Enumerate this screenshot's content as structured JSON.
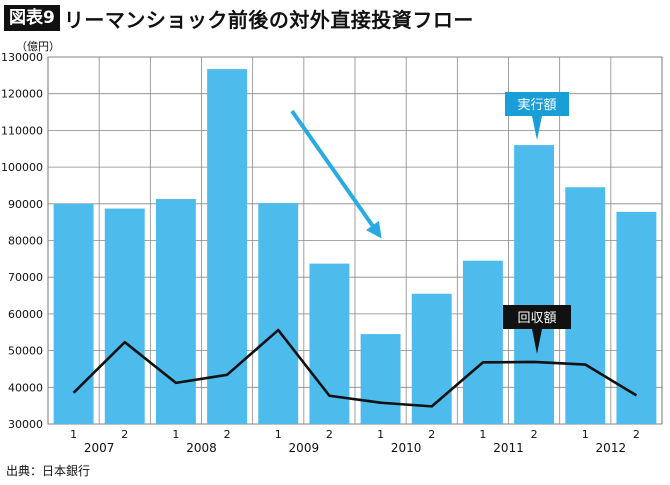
{
  "header": {
    "fig_label": "図表9",
    "title": "リーマンショック前後の対外直接投資フロー"
  },
  "unit_label": "（億円）",
  "source": "出典：日本銀行",
  "colors": {
    "bar": "#4dbbeb",
    "line": "#111111",
    "arrow": "#29abe2",
    "callout_exec": "#1a9ed8",
    "callout_coll": "#111111"
  },
  "chart_data": {
    "type": "bar",
    "ylim": [
      30000,
      130000
    ],
    "yticks": [
      "30000",
      "40000",
      "50000",
      "60000",
      "70000",
      "80000",
      "90000",
      "100000",
      "110000",
      "120000",
      "130000"
    ],
    "categories": [
      "1",
      "2",
      "1",
      "2",
      "1",
      "2",
      "1",
      "2",
      "1",
      "2",
      "1",
      "2"
    ],
    "years": [
      "2007",
      "2008",
      "2009",
      "2010",
      "2011",
      "2012"
    ],
    "series": [
      {
        "name": "実行額",
        "type": "bar",
        "values": [
          90000,
          88700,
          91300,
          126700,
          90200,
          73700,
          54500,
          65500,
          74500,
          106000,
          94500,
          87800
        ]
      },
      {
        "name": "回収額",
        "type": "line",
        "values": [
          38500,
          52300,
          41200,
          43400,
          55600,
          37700,
          35800,
          34800,
          46800,
          46900,
          46200,
          37800
        ]
      }
    ],
    "callouts": [
      "実行額",
      "回収額"
    ],
    "grid": true
  }
}
